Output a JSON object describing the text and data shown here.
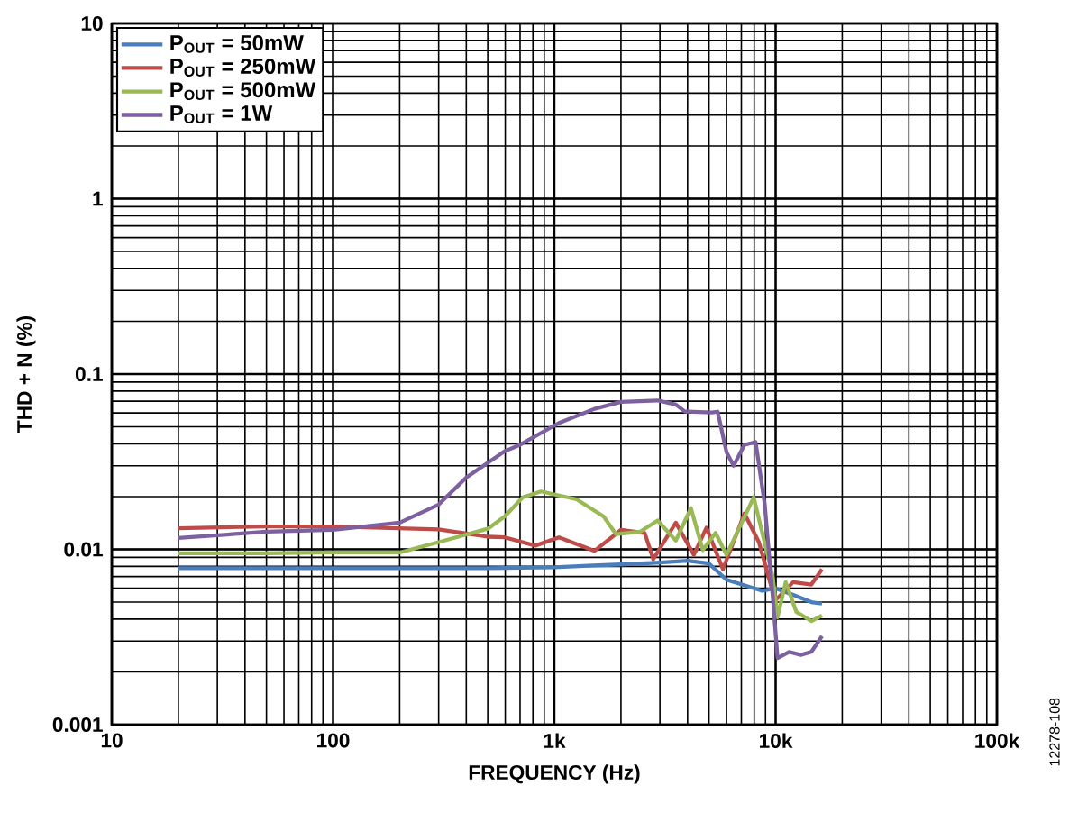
{
  "chart_data": {
    "type": "line",
    "xlabel": "FREQUENCY (Hz)",
    "ylabel": "THD + N (%)",
    "log": "xy",
    "grid": true,
    "legend": "top left",
    "xlim": [
      10,
      100000
    ],
    "ylim": [
      0.001,
      10
    ],
    "xticks": [
      10,
      100,
      {
        "value": 1000,
        "label": "1k"
      },
      {
        "value": 10000,
        "label": "10k"
      },
      {
        "value": 100000,
        "label": "100k"
      }
    ],
    "yticks": [
      0.001,
      0.01,
      0.1,
      1,
      10
    ],
    "annotations": [
      "12278-108"
    ],
    "series": [
      {
        "name": "P$_{OUT}$ = 50mW",
        "color": "#4a7ebb",
        "x": [
          20,
          50,
          100,
          200,
          500,
          1000,
          1500,
          2000,
          3000,
          4000,
          5000,
          6000,
          8700,
          10000,
          12000,
          14500,
          16200
        ],
        "values": [
          0.0078,
          0.0078,
          0.0078,
          0.0078,
          0.0078,
          0.0079,
          0.0081,
          0.0082,
          0.0084,
          0.0086,
          0.0083,
          0.0067,
          0.0058,
          0.006,
          0.0055,
          0.005,
          0.0049
        ]
      },
      {
        "name": "P$_{OUT}$ = 250mW",
        "color": "#be4b48",
        "x": [
          20,
          50,
          100,
          300,
          500,
          597,
          820,
          1050,
          1520,
          2000,
          2560,
          2800,
          3540,
          4270,
          4870,
          5780,
          7230,
          8400,
          9950,
          12000,
          14500,
          16200
        ],
        "values": [
          0.0132,
          0.0135,
          0.0135,
          0.013,
          0.0118,
          0.0117,
          0.0105,
          0.0117,
          0.0098,
          0.0129,
          0.0124,
          0.0088,
          0.0142,
          0.0093,
          0.0133,
          0.0077,
          0.016,
          0.011,
          0.0051,
          0.0065,
          0.0063,
          0.0077
        ]
      },
      {
        "name": "P$_{OUT}$ = 500mW",
        "color": "#98b954",
        "x": [
          20,
          50,
          100,
          200,
          300,
          500,
          597,
          720,
          870,
          1260,
          1670,
          1900,
          2440,
          2930,
          3540,
          4140,
          4690,
          5350,
          6000,
          7960,
          9700,
          10200,
          11100,
          12400,
          14500,
          16200
        ],
        "values": [
          0.0095,
          0.0095,
          0.0096,
          0.0096,
          0.011,
          0.0131,
          0.0154,
          0.0198,
          0.0214,
          0.0193,
          0.0154,
          0.0122,
          0.0126,
          0.0146,
          0.0112,
          0.0172,
          0.0099,
          0.0124,
          0.0093,
          0.0198,
          0.007,
          0.0041,
          0.0065,
          0.0044,
          0.0039,
          0.0042
        ]
      },
      {
        "name": "P$_{OUT}$ = 1W",
        "color": "#7d60a0",
        "x": [
          20,
          50,
          100,
          200,
          300,
          400,
          597,
          700,
          1050,
          1520,
          2000,
          2930,
          3540,
          3890,
          5160,
          5470,
          6000,
          6460,
          7230,
          8120,
          8930,
          9700,
          10200,
          11500,
          13000,
          14500,
          16200
        ],
        "values": [
          0.0116,
          0.0126,
          0.0129,
          0.0142,
          0.018,
          0.0257,
          0.0363,
          0.0395,
          0.0526,
          0.0633,
          0.0694,
          0.0707,
          0.067,
          0.0611,
          0.0604,
          0.061,
          0.0358,
          0.03,
          0.0395,
          0.0409,
          0.018,
          0.0054,
          0.0024,
          0.0026,
          0.0025,
          0.0026,
          0.0032
        ]
      }
    ]
  }
}
